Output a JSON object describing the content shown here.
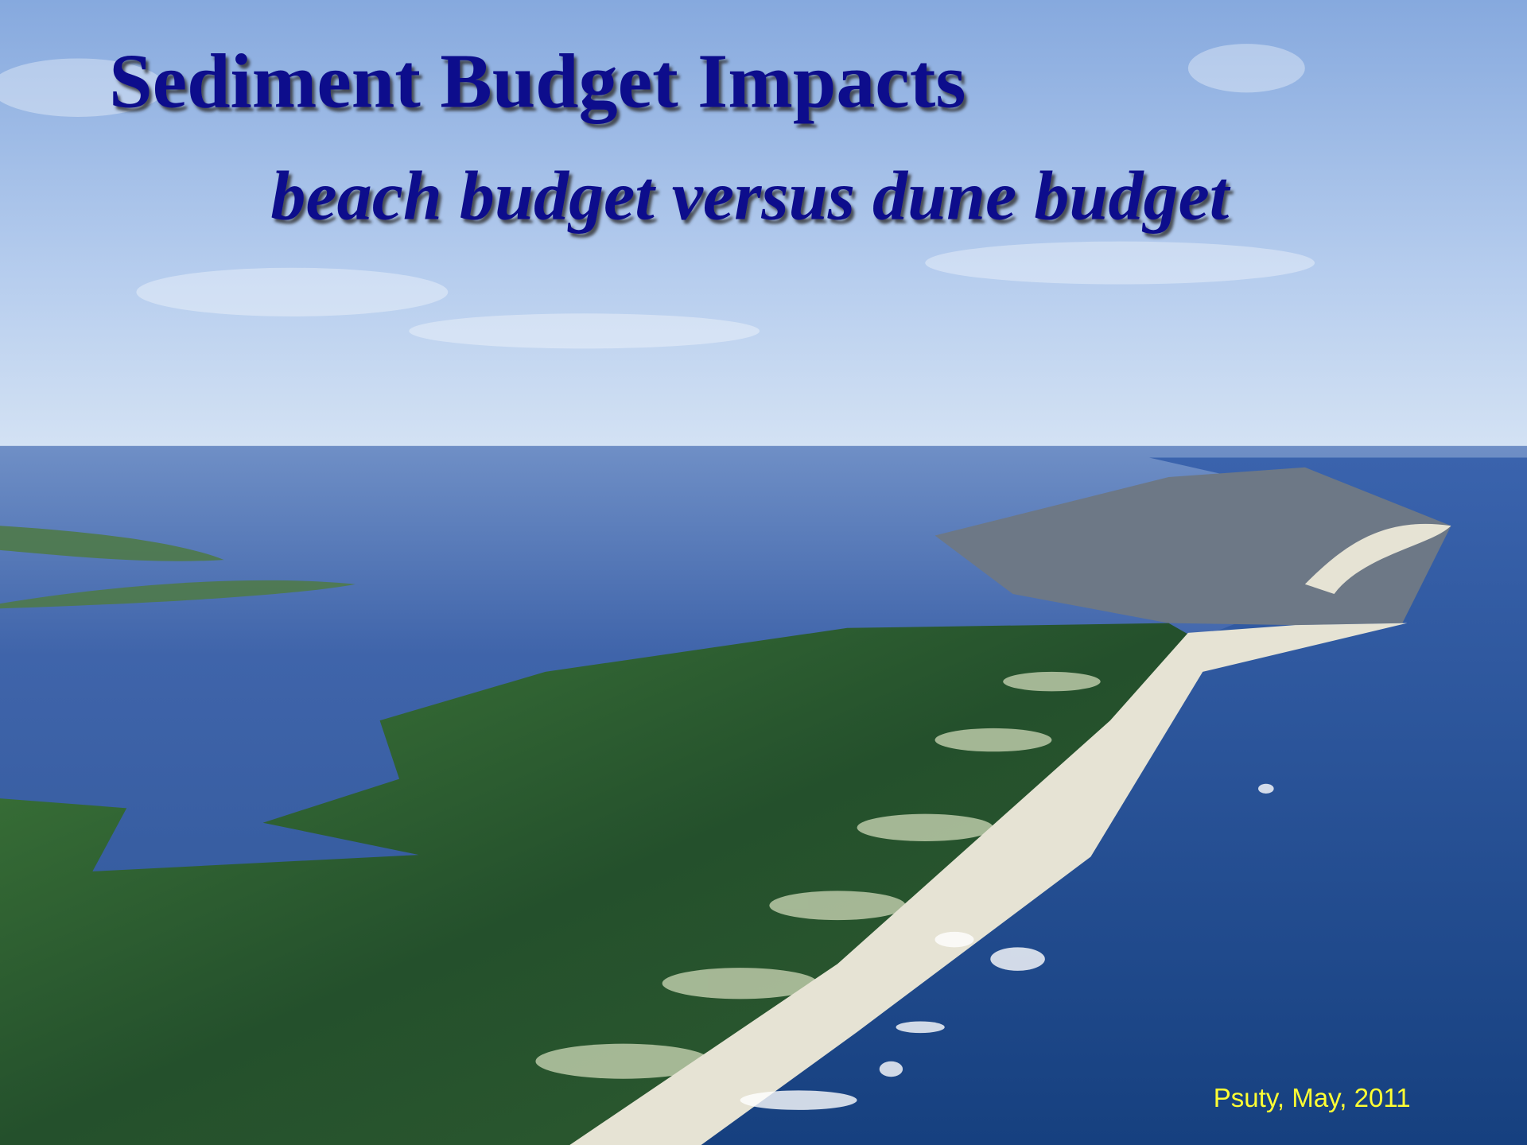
{
  "slide": {
    "title": "Sediment Budget Impacts",
    "subtitle": "beach budget versus dune budget",
    "credit": "Psuty, May, 2011"
  }
}
